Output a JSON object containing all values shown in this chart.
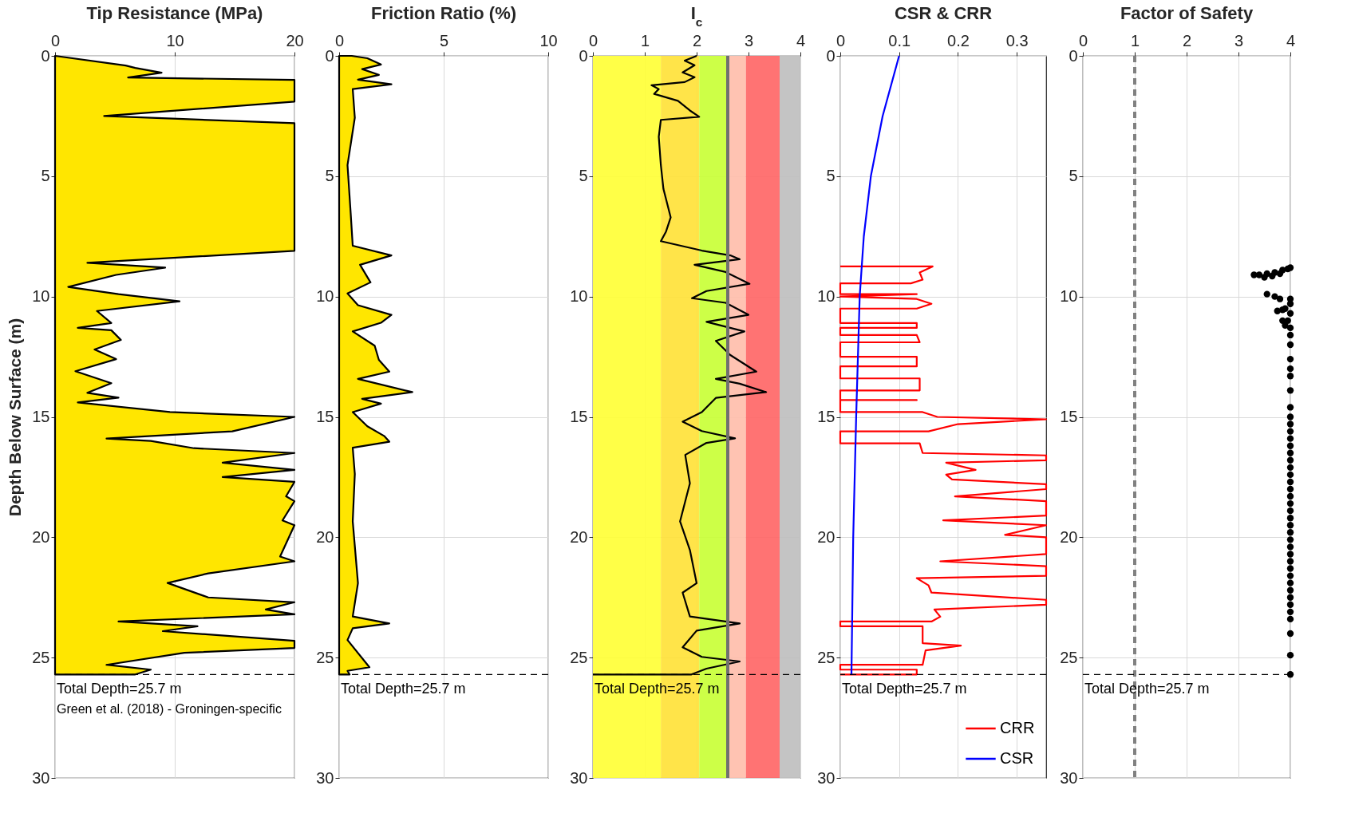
{
  "chart_data": [
    {
      "type": "area",
      "orientation": "horizontal",
      "title": "Tip Resistance (MPa)",
      "ylabel": "Depth Below Surface (m)",
      "xlim": [
        0,
        20
      ],
      "xticks": [
        0,
        10,
        20
      ],
      "ylim": [
        30,
        0
      ],
      "yticks": [
        0,
        5,
        10,
        15,
        20,
        25,
        30
      ],
      "grid": true,
      "series": [
        {
          "color": "#ffe600",
          "values": [
            0,
            5.9,
            6.7,
            8.9,
            6.1,
            20,
            20,
            4.1,
            20,
            20,
            2.7,
            9.2,
            5.1,
            1.1,
            5.3,
            10.4,
            3.5,
            4.7,
            1.9,
            4.7,
            5.5,
            3.3,
            5.1,
            1.7,
            4.7,
            2.7,
            5.3,
            1.9,
            9.6,
            20,
            14.8,
            4.3,
            8.0,
            11.6,
            20,
            14.0,
            20,
            14.0,
            20,
            19.3,
            20,
            19.0,
            20,
            18.8,
            20,
            12.8,
            9.4,
            12.8,
            20,
            17.6,
            20,
            5.3,
            11.9,
            9.0,
            20,
            20,
            10.8,
            4.3,
            8.0,
            6.7
          ],
          "x": [
            0,
            0.4,
            0.5,
            0.7,
            0.9,
            1.0,
            1.9,
            2.5,
            2.8,
            8.1,
            8.6,
            8.8,
            9.1,
            9.6,
            9.9,
            10.2,
            10.6,
            11.1,
            11.3,
            11.4,
            11.8,
            12.2,
            12.6,
            13.1,
            13.6,
            14.0,
            14.2,
            14.4,
            14.8,
            15.0,
            15.6,
            15.9,
            16.0,
            16.3,
            16.5,
            16.9,
            17.2,
            17.5,
            17.7,
            18.3,
            18.5,
            19.3,
            19.5,
            20.8,
            21.0,
            21.5,
            21.9,
            22.5,
            22.7,
            23.0,
            23.2,
            23.5,
            23.7,
            23.9,
            24.3,
            24.6,
            24.8,
            25.3,
            25.5,
            25.7
          ]
        }
      ],
      "ref_lines": [
        {
          "axis": "y",
          "value": 25.7,
          "label": "Total Depth=25.7 m",
          "color": "#000000",
          "line_style": "dashed"
        }
      ],
      "annotations": [
        "Green et al. (2018) - Groningen-specific"
      ]
    },
    {
      "type": "area",
      "orientation": "horizontal",
      "title": "Friction Ratio (%)",
      "xlim": [
        0,
        10
      ],
      "xticks": [
        0,
        5,
        10
      ],
      "ylim": [
        30,
        0
      ],
      "yticks": [
        0,
        5,
        10,
        15,
        20,
        25,
        30
      ],
      "grid": true,
      "series": [
        {
          "color": "#ffe600",
          "values": [
            0.6,
            1.35,
            2.0,
            1.1,
            1.9,
            0.9,
            2.5,
            0.65,
            0.75,
            0.4,
            0.55,
            0.65,
            2.5,
            1.0,
            1.5,
            0.4,
            0.9,
            2.5,
            2.0,
            0.65,
            1.7,
            1.9,
            2.4,
            0.9,
            3.5,
            1.1,
            2.0,
            0.65,
            1.35,
            2.15,
            2.4,
            0.65,
            0.75,
            0.65,
            0.9,
            0.65,
            2.4,
            0.65,
            0.4,
            1.45,
            0.4,
            0.5
          ],
          "x": [
            0,
            0.1,
            0.36,
            0.55,
            0.79,
            0.99,
            1.18,
            1.38,
            2.57,
            4.54,
            6.51,
            7.89,
            8.29,
            8.68,
            9.41,
            9.87,
            10.36,
            10.76,
            11.09,
            11.45,
            12.04,
            12.63,
            13.12,
            13.42,
            13.97,
            14.25,
            14.45,
            14.8,
            15.39,
            15.79,
            16.03,
            16.28,
            17.37,
            19.34,
            21.91,
            23.29,
            23.58,
            23.78,
            24.27,
            25.4,
            25.55,
            25.7
          ]
        }
      ],
      "ref_lines": [
        {
          "axis": "y",
          "value": 25.7,
          "label": "Total Depth=25.7 m",
          "color": "#000000",
          "line_style": "dashed"
        }
      ]
    },
    {
      "type": "line",
      "title": "I$_{c}$",
      "xlim": [
        0,
        4
      ],
      "xticks": [
        0,
        1,
        2,
        3,
        4
      ],
      "ylim": [
        30,
        0
      ],
      "yticks": [
        0,
        5,
        10,
        15,
        20,
        25,
        30
      ],
      "grid": true,
      "bands": [
        {
          "axis": "x",
          "from": 0,
          "to": 1.31,
          "color": "#ffff33"
        },
        {
          "axis": "x",
          "from": 1.31,
          "to": 2.05,
          "color": "#ffe135"
        },
        {
          "axis": "x",
          "from": 2.05,
          "to": 2.6,
          "color": "#c8ff33"
        },
        {
          "axis": "x",
          "from": 2.6,
          "to": 2.95,
          "color": "#ffbcaa"
        },
        {
          "axis": "x",
          "from": 2.95,
          "to": 3.6,
          "color": "#ff6464"
        },
        {
          "axis": "x",
          "from": 3.6,
          "to": 4,
          "color": "#bebebe"
        }
      ],
      "series": [
        {
          "color": "#000000",
          "x": [
            2.0,
            1.77,
            1.96,
            1.73,
            1.96,
            1.77,
            1.13,
            1.27,
            1.18,
            1.64,
            1.87,
            2.05,
            1.31,
            1.27,
            1.31,
            1.36,
            1.5,
            1.41,
            1.31,
            2.1,
            2.65,
            2.83,
            1.96,
            2.56,
            3.02,
            2.19,
            1.91,
            2.56,
            3.0,
            2.19,
            2.92,
            2.37,
            2.65,
            3.15,
            2.37,
            2.83,
            3.34,
            2.37,
            2.1,
            1.73,
            2.1,
            2.74,
            2.19,
            1.78,
            1.87,
            1.68,
            1.87,
            2.0,
            1.73,
            1.87,
            2.83,
            2.0,
            1.73,
            2.1,
            2.83,
            2.19,
            1.9,
            0
          ],
          "values": [
            0,
            0.2,
            0.39,
            0.69,
            0.89,
            1.09,
            1.22,
            1.38,
            1.58,
            1.87,
            2.27,
            2.53,
            2.66,
            3.36,
            4.54,
            5.53,
            6.71,
            7.3,
            7.7,
            8.09,
            8.29,
            8.45,
            8.68,
            8.98,
            9.47,
            9.77,
            10.07,
            10.26,
            10.76,
            11.05,
            11.45,
            11.84,
            12.43,
            13.12,
            13.42,
            13.62,
            13.97,
            14.21,
            14.8,
            15.2,
            15.59,
            15.89,
            16.08,
            16.58,
            17.76,
            19.34,
            20.53,
            21.91,
            22.3,
            23.29,
            23.58,
            23.88,
            24.57,
            24.97,
            25.16,
            25.46,
            25.7,
            25.7
          ]
        }
      ],
      "ref_lines": [
        {
          "axis": "x",
          "value": 2.6,
          "color": "#707070"
        },
        {
          "axis": "y",
          "value": 25.7,
          "label": "Total Depth=25.7 m",
          "color": "#000000",
          "line_style": "dashed"
        }
      ]
    },
    {
      "type": "line",
      "title": "CSR & CRR",
      "xlim": [
        0,
        0.35
      ],
      "xticks": [
        0,
        0.1,
        0.2,
        0.3
      ],
      "ylim": [
        30,
        0
      ],
      "yticks": [
        0,
        5,
        10,
        15,
        20,
        25,
        30
      ],
      "grid": true,
      "legend": "bottom right",
      "series": [
        {
          "name": "CRR",
          "color": "#ff0000",
          "x": [
            0,
            0.157,
            0.135,
            0.14,
            0.12,
            0,
            0,
            0.13,
            0,
            0.13,
            0.155,
            0.13,
            0,
            0,
            0.13,
            0.13,
            0,
            0,
            0.13,
            0.135,
            0,
            0,
            0.13,
            0.13,
            0,
            0,
            0.135,
            0.135,
            0,
            0,
            0.13,
            0,
            0,
            0.14,
            0.165,
            0.35,
            0.2,
            0.15,
            0,
            0,
            0.135,
            0.14,
            0.35,
            0.35,
            0.18,
            0.23,
            0.18,
            0.19,
            0.35,
            0.35,
            0.195,
            0.35,
            0.35,
            0.175,
            0.35,
            0.28,
            0.35,
            0.35,
            0.17,
            0.35,
            0.35,
            0.13,
            0.15,
            0.155,
            0.35,
            0.35,
            0.16,
            0.17,
            0.155,
            0,
            0,
            0.14,
            0.14,
            0.205,
            0.145,
            0.14,
            0,
            0,
            0.13,
            0.13,
            0
          ],
          "values": [
            8.75,
            8.75,
            9.0,
            9.3,
            9.45,
            9.45,
            9.9,
            9.9,
            10.0,
            10.1,
            10.3,
            10.5,
            10.5,
            11.1,
            11.1,
            11.3,
            11.3,
            11.6,
            11.6,
            11.9,
            11.9,
            12.5,
            12.5,
            12.9,
            12.9,
            13.4,
            13.4,
            13.9,
            13.9,
            14.3,
            14.3,
            14.3,
            14.8,
            14.8,
            15.0,
            15.1,
            15.3,
            15.6,
            15.6,
            16.1,
            16.1,
            16.5,
            16.6,
            16.8,
            16.9,
            17.2,
            17.4,
            17.6,
            17.8,
            18.0,
            18.3,
            18.5,
            19.1,
            19.3,
            19.5,
            19.9,
            20.0,
            20.7,
            21.0,
            21.2,
            21.6,
            21.7,
            22.0,
            22.3,
            22.6,
            22.8,
            23.0,
            23.3,
            23.5,
            23.5,
            23.7,
            23.7,
            24.4,
            24.5,
            24.7,
            25.3,
            25.3,
            25.5,
            25.5,
            25.7,
            25.7
          ]
        },
        {
          "name": "CSR",
          "color": "#0000ff",
          "x": [
            0.1,
            0.072,
            0.052,
            0.04,
            0.033,
            0.027,
            0.022,
            0.019
          ],
          "values": [
            0,
            2.5,
            5,
            7.5,
            10,
            15,
            20,
            25.7
          ]
        }
      ],
      "ref_lines": [
        {
          "axis": "y",
          "value": 25.7,
          "label": "Total Depth=25.7 m",
          "color": "#000000",
          "line_style": "dashed"
        }
      ]
    },
    {
      "type": "scatter",
      "title": "Factor of Safety",
      "xlim": [
        0,
        4
      ],
      "xticks": [
        0,
        1,
        2,
        3,
        4
      ],
      "ylim": [
        30,
        0
      ],
      "yticks": [
        0,
        5,
        10,
        15,
        20,
        25,
        30
      ],
      "grid": true,
      "marker": "circle",
      "series": [
        {
          "color": "#000000",
          "x": [
            4,
            3.95,
            3.85,
            3.7,
            3.55,
            3.4,
            3.3,
            3.5,
            3.65,
            3.8,
            3.55,
            3.7,
            3.8,
            4,
            4,
            3.9,
            3.75,
            3.85,
            4,
            3.95,
            3.85,
            3.9,
            4,
            4,
            4,
            4,
            4,
            4,
            4,
            4,
            4,
            4,
            4,
            4,
            4,
            4,
            4,
            4,
            4,
            4,
            4,
            4,
            4,
            4,
            4,
            4,
            4,
            4,
            4,
            4,
            4,
            4,
            4,
            4,
            4,
            4,
            4,
            4,
            4,
            4,
            4,
            4
          ],
          "values": [
            8.8,
            8.85,
            8.9,
            9.0,
            9.05,
            9.1,
            9.1,
            9.2,
            9.15,
            9.05,
            9.9,
            10.0,
            10.1,
            10.1,
            10.3,
            10.5,
            10.6,
            10.55,
            10.7,
            11.0,
            11.0,
            11.2,
            11.3,
            11.6,
            12.0,
            12.6,
            13.0,
            13.3,
            13.9,
            14.6,
            15.0,
            15.3,
            15.6,
            15.9,
            16.2,
            16.5,
            16.8,
            17.1,
            17.4,
            17.7,
            18.0,
            18.3,
            18.6,
            18.9,
            19.2,
            19.5,
            19.8,
            20.1,
            20.4,
            20.7,
            21.0,
            21.3,
            21.6,
            21.9,
            22.2,
            22.5,
            22.8,
            23.1,
            23.4,
            24.0,
            24.9,
            25.7
          ]
        }
      ],
      "ref_lines": [
        {
          "axis": "x",
          "value": 1,
          "color": "#808080",
          "line_style": "dashed"
        },
        {
          "axis": "y",
          "value": 25.7,
          "label": "Total Depth=25.7 m",
          "color": "#000000",
          "line_style": "dashed"
        }
      ]
    }
  ]
}
